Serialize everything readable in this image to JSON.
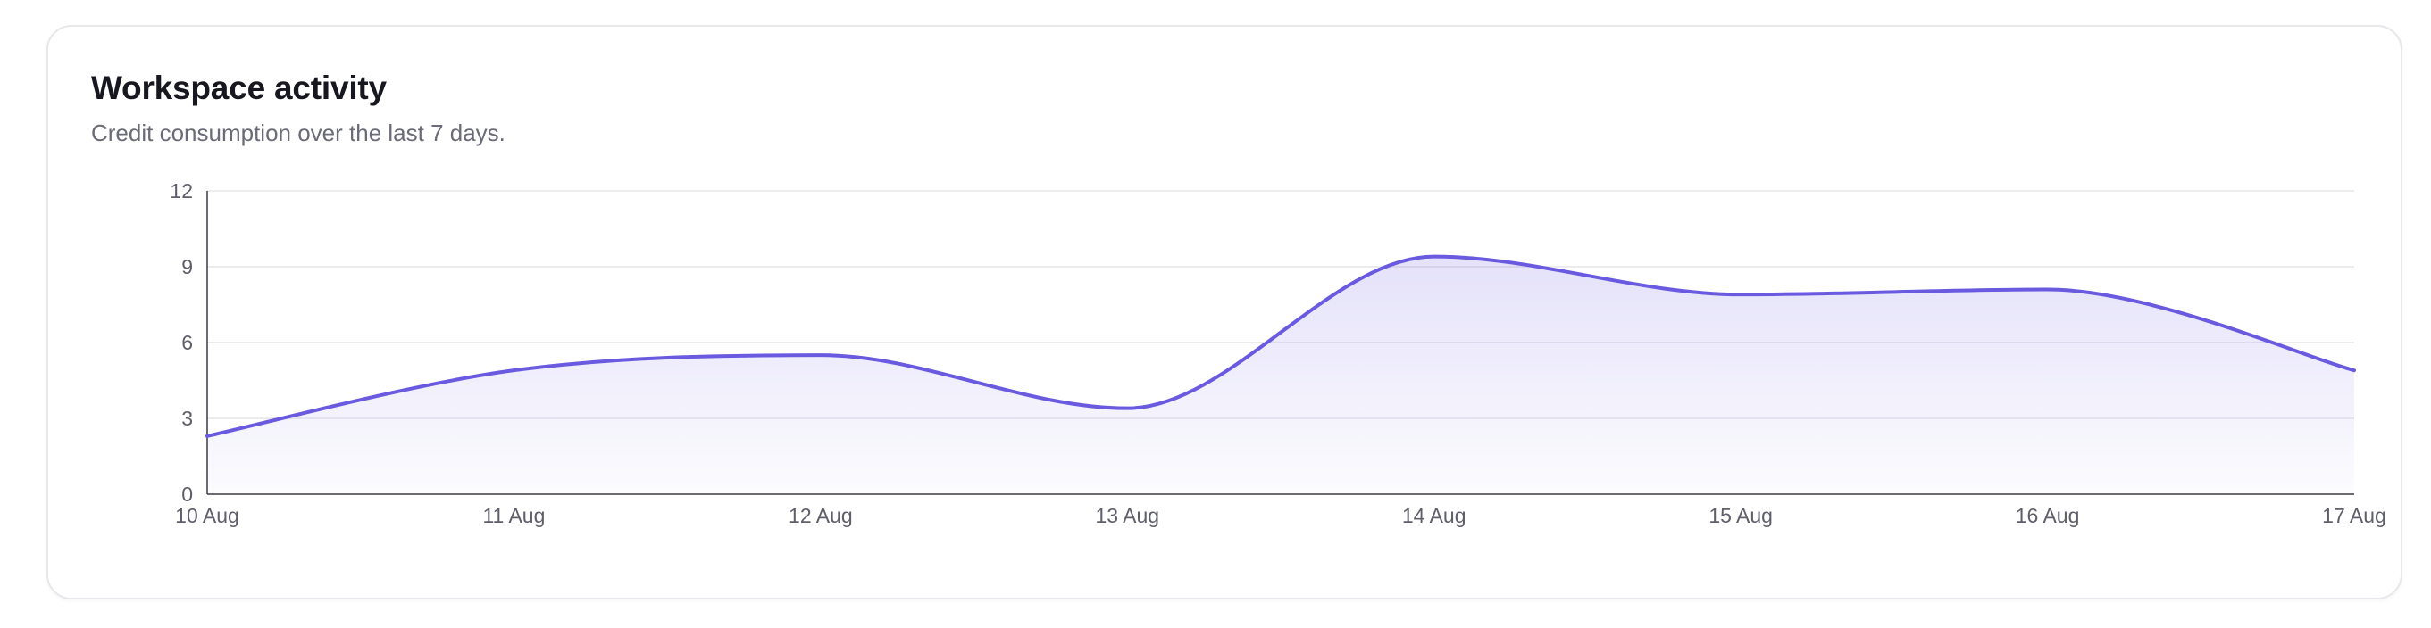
{
  "card": {
    "title": "Workspace activity",
    "subtitle": "Credit consumption over the last 7 days."
  },
  "chart_data": {
    "type": "area",
    "title": "",
    "xlabel": "",
    "ylabel": "",
    "categories": [
      "10 Aug",
      "11 Aug",
      "12 Aug",
      "13 Aug",
      "14 Aug",
      "15 Aug",
      "16 Aug",
      "17 Aug"
    ],
    "series": [
      {
        "values": [
          2.3,
          4.9,
          5.5,
          3.4,
          9.4,
          7.9,
          8.1,
          4.9
        ],
        "color": "#6a5ae0"
      }
    ],
    "ylim": [
      0,
      12
    ],
    "yticks": [
      0,
      3,
      6,
      9,
      12
    ],
    "grid": true,
    "legend": "none",
    "fill": "gradient"
  }
}
